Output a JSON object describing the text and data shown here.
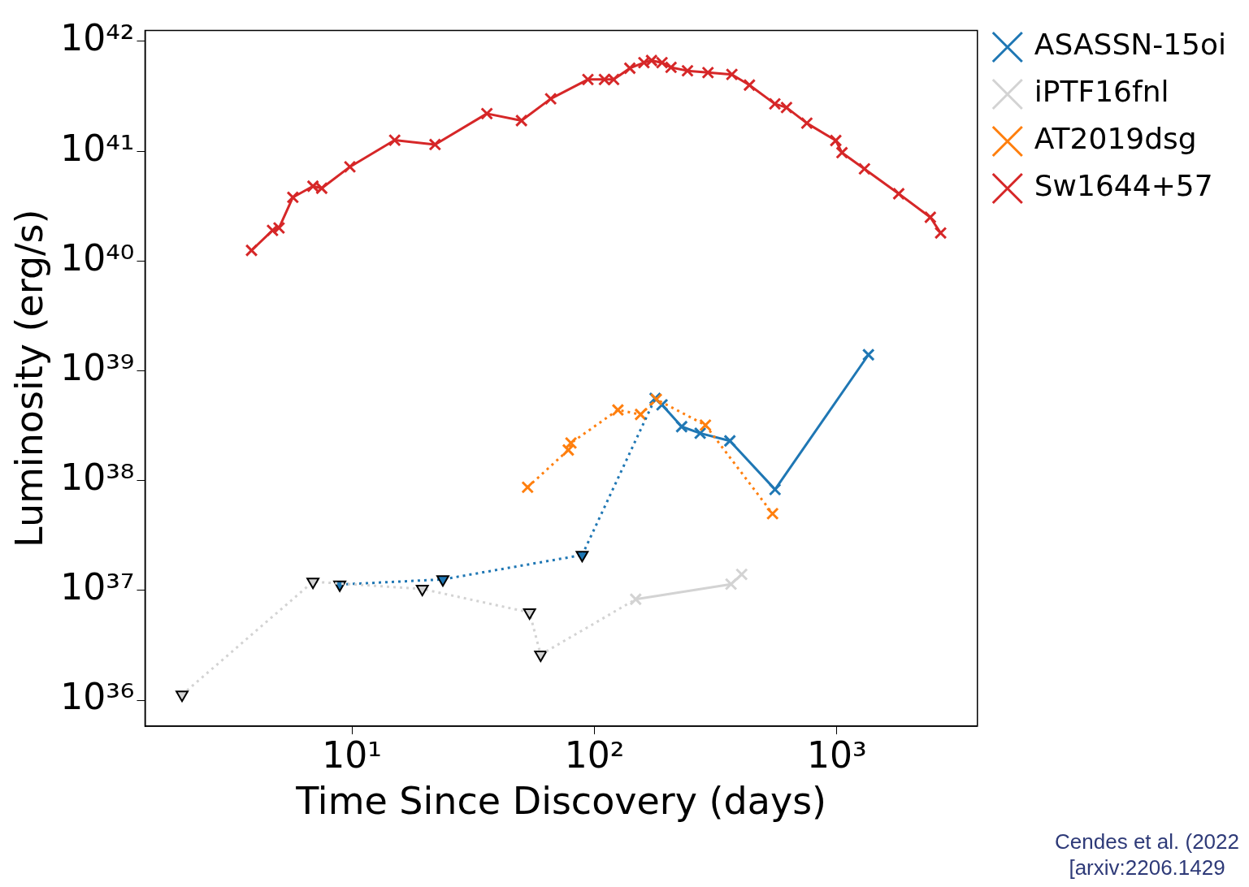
{
  "chart_data": {
    "type": "line",
    "xlabel": "Time Since Discovery (days)",
    "ylabel": "Luminosity (erg/s)",
    "log": "xy",
    "grid": false,
    "legend": "right",
    "xlim": [
      1.4,
      3800
    ],
    "xticks": [
      {
        "value": 10,
        "label": "10¹"
      },
      {
        "value": 100,
        "label": "10²"
      },
      {
        "value": 1000,
        "label": "10³"
      }
    ],
    "ylim": [
      5.8e+35,
      1.26e+42
    ],
    "yticks": [
      {
        "value": 1e+36,
        "label": "10³⁶"
      },
      {
        "value": 1e+37,
        "label": "10³⁷"
      },
      {
        "value": 1e+38,
        "label": "10³⁸"
      },
      {
        "value": 1e+39,
        "label": "10³⁹"
      },
      {
        "value": 1e+40,
        "label": "10⁴⁰"
      },
      {
        "value": 1e+41,
        "label": "10⁴¹"
      },
      {
        "value": 1e+42,
        "label": "10⁴²"
      }
    ],
    "series": [
      {
        "name": "ASASSN-15oi",
        "color": "#1f77b4",
        "marker": "cross",
        "line_style": "solid",
        "x": [
          178,
          190,
          229,
          273,
          362,
          556,
          1350
        ],
        "values": [
          5.6e+38,
          4.9e+38,
          3.1e+38,
          2.7e+38,
          2.3e+38,
          8.3e+37,
          1.4e+39
        ]
      },
      {
        "name": "iPTF16fnl",
        "color": "#d3d3d3",
        "marker": "cross",
        "line_style": "solid",
        "x": [
          148,
          366,
          405
        ],
        "values": [
          8.3e+36,
          1.14e+37,
          1.4e+37
        ]
      },
      {
        "name": "AT2019dsg",
        "color": "#ff7f0e",
        "marker": "cross",
        "line_style": "dotted",
        "x": [
          53,
          78,
          80,
          125,
          155,
          180,
          287,
          543
        ],
        "values": [
          8.7e+37,
          1.9e+38,
          2.2e+38,
          4.4e+38,
          4e+38,
          5.5e+38,
          3.2e+38,
          5e+37
        ]
      },
      {
        "name": "Sw1644+57",
        "color": "#d62728",
        "marker": "cross",
        "line_style": "solid",
        "x": [
          3.85,
          4.7,
          5.0,
          5.7,
          6.9,
          7.5,
          9.8,
          15,
          22,
          36,
          50,
          66,
          94,
          110,
          120,
          140,
          160,
          172,
          190,
          207,
          242,
          294,
          369,
          436,
          555,
          620,
          752,
          990,
          1050,
          1300,
          1800,
          2430,
          2680
        ],
        "values": [
          1.25e+40,
          1.9e+40,
          2e+40,
          3.8e+40,
          4.8e+40,
          4.6e+40,
          7.2e+40,
          1.26e+41,
          1.15e+41,
          2.2e+41,
          1.9e+41,
          3e+41,
          4.5e+41,
          4.5e+41,
          4.5e+41,
          5.7e+41,
          6.4e+41,
          6.7e+41,
          6.4e+41,
          5.8e+41,
          5.4e+41,
          5.2e+41,
          5e+41,
          4e+41,
          2.7e+41,
          2.5e+41,
          1.8e+41,
          1.25e+41,
          9.7e+40,
          6.9e+40,
          4.1e+40,
          2.5e+40,
          1.8e+40
        ]
      },
      {
        "color": "#1f77b4",
        "marker": "triangle",
        "line_style": "dotted",
        "x": [
          8.9,
          23.7,
          89
        ],
        "values": [
          1.13e+37,
          1.26e+37,
          2.1e+37
        ]
      },
      {
        "color": "#1f77b4",
        "marker": "none",
        "line_style": "dotted",
        "x": [
          89,
          178
        ],
        "values": [
          2.1e+37,
          5.6e+38
        ]
      },
      {
        "color": "#d3d3d3",
        "marker": "triangle",
        "line_style": "dotted",
        "x": [
          1.99,
          6.9,
          19.5,
          54,
          60
        ],
        "values": [
          1.12e+36,
          1.2e+37,
          1.03e+37,
          6.3e+36,
          2.6e+36
        ]
      },
      {
        "color": "#d3d3d3",
        "marker": "none",
        "line_style": "dotted",
        "x": [
          60,
          148
        ],
        "values": [
          2.6e+36,
          8.3e+36
        ]
      }
    ],
    "annotations": [
      "Cendes et al. (2022",
      "[arxiv:2206.1429"
    ]
  }
}
